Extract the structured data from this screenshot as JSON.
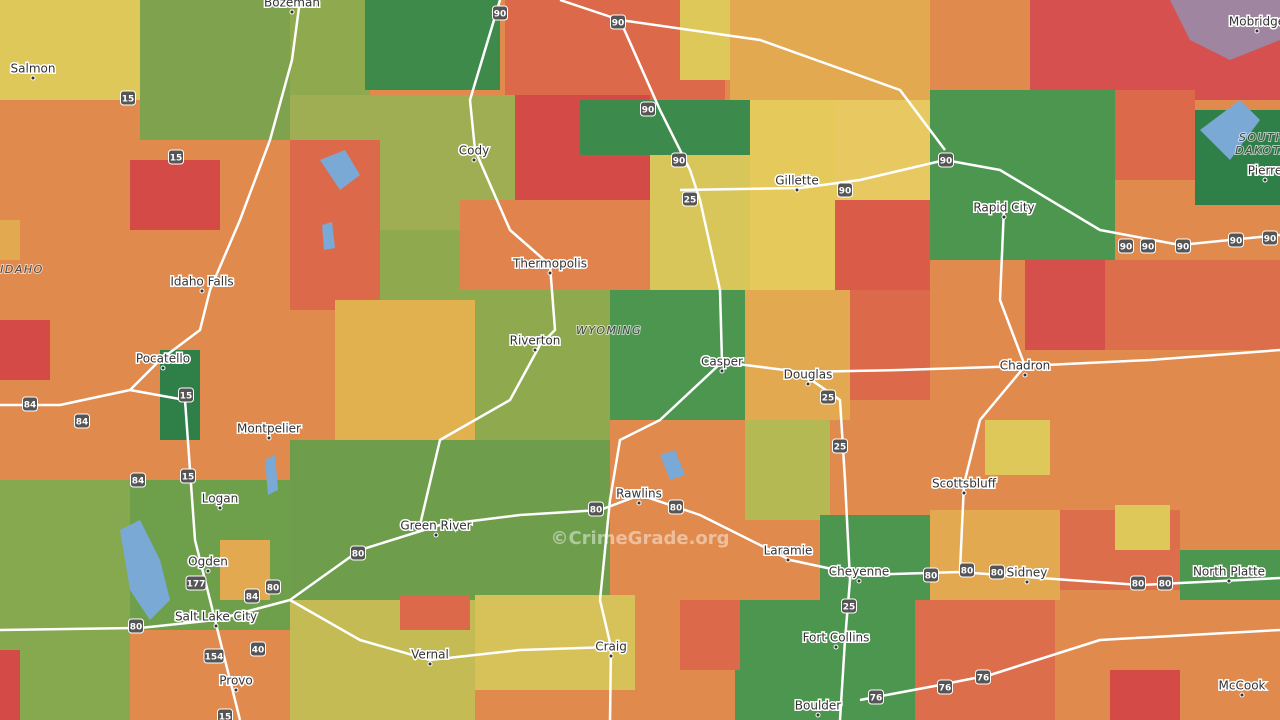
{
  "map": {
    "cities": [
      "Bozeman",
      "Salmon",
      "Cody",
      "Gillette",
      "Rapid City",
      "Thermopolis",
      "Idaho Falls",
      "Riverton",
      "Casper",
      "Douglas",
      "Chadron",
      "Pocatello",
      "Montpelier",
      "Rawlins",
      "Scottsbluff",
      "Logan",
      "Green River",
      "Laramie",
      "Cheyenne",
      "Sidney",
      "North Platte",
      "Ogden",
      "Salt Lake City",
      "Fort Collins",
      "Vernal",
      "Craig",
      "Provo",
      "Boulder",
      "McCook",
      "Mobridge",
      "Pierre"
    ],
    "states": [
      "WYOMING",
      "IDAHO",
      "SOUTH",
      "DAKOTA"
    ],
    "highways": [
      "90",
      "90",
      "15",
      "15",
      "90",
      "90",
      "90",
      "90",
      "25",
      "90",
      "90",
      "90",
      "90",
      "90",
      "25",
      "25",
      "15",
      "84",
      "84",
      "15",
      "84",
      "80",
      "80",
      "80",
      "80",
      "80",
      "80",
      "80",
      "80",
      "177",
      "84",
      "80",
      "80",
      "40",
      "154",
      "25",
      "76",
      "76",
      "76",
      "15"
    ],
    "watermark": "©CrimeGrade.org"
  }
}
